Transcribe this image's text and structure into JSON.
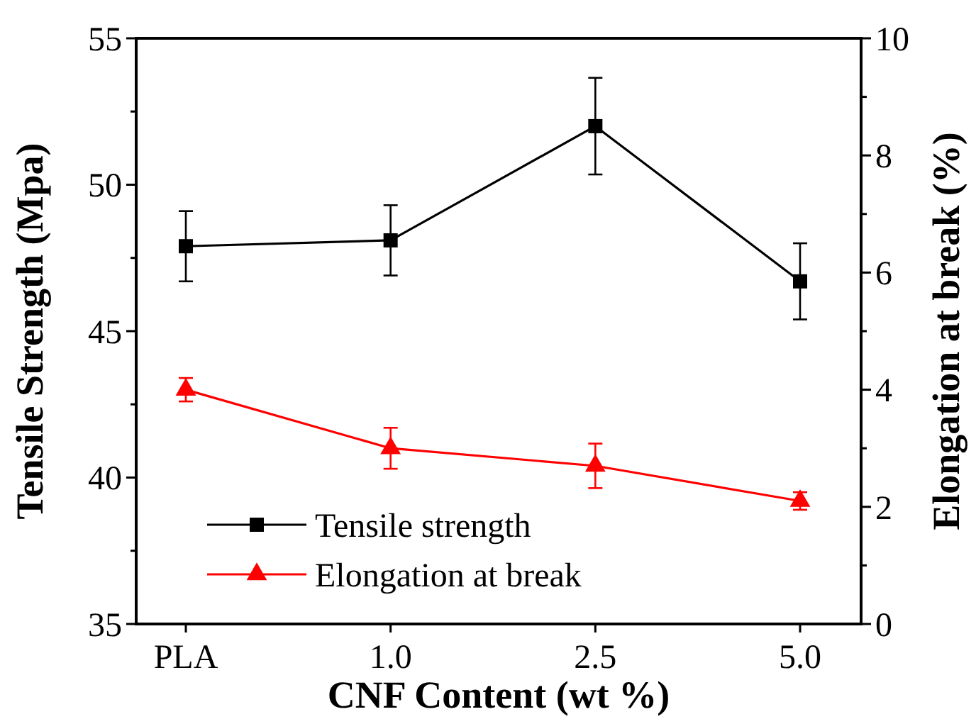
{
  "chart_data": {
    "type": "line",
    "xlabel": "CNF Content (wt %)",
    "ylabel": "Tensile Strength (Mpa)",
    "y2label": "Elongation at break (%)",
    "categories": [
      "PLA",
      "1.0",
      "2.5",
      "5.0"
    ],
    "series": [
      {
        "name": "Tensile strength",
        "color": "#000000",
        "marker": "square",
        "values": [
          47.9,
          48.1,
          52.0,
          46.7
        ],
        "errors": [
          1.2,
          1.2,
          1.65,
          1.3
        ]
      },
      {
        "name": "Elongation at break",
        "color": "#ff0000",
        "marker": "triangle",
        "axis": "y2",
        "values": [
          4.0,
          3.0,
          2.7,
          2.1
        ],
        "errors": [
          0.2,
          0.35,
          0.38,
          0.15
        ]
      }
    ],
    "ylim": [
      35,
      55
    ],
    "yticks": [
      35,
      {
        "value": 37.5,
        "label": null
      },
      40,
      {
        "value": 42.5,
        "label": null
      },
      45,
      {
        "value": 47.5,
        "label": null
      },
      50,
      {
        "value": 52.5,
        "label": null
      },
      55
    ],
    "y2lim": [
      0,
      10
    ],
    "y2ticks": [
      0,
      {
        "value": 1,
        "label": null
      },
      2,
      {
        "value": 3,
        "label": null
      },
      4,
      {
        "value": 5,
        "label": null
      },
      6,
      {
        "value": 7,
        "label": null
      },
      8,
      {
        "value": 9,
        "label": null
      },
      10
    ],
    "grid": false,
    "legend": "bottom left",
    "line_style": "solid"
  }
}
